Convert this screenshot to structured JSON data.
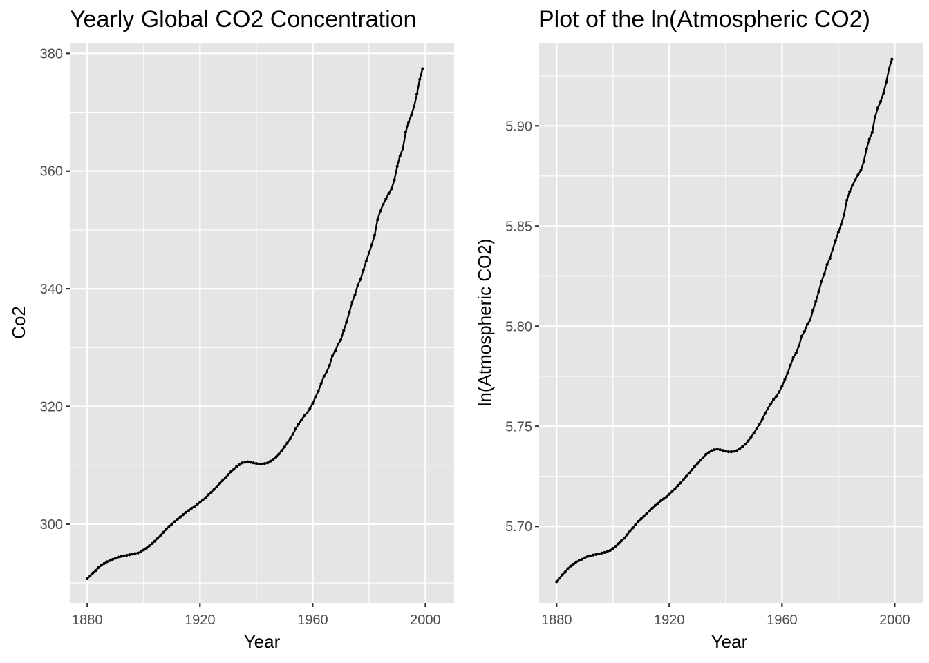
{
  "chart_data": [
    {
      "type": "line",
      "title": "Yearly Global CO2 Concentration",
      "xlabel": "Year",
      "ylabel": "Co2",
      "xlim": [
        1873.8,
        2010.2
      ],
      "ylim": [
        286.6,
        381.8
      ],
      "x_ticks": [
        1880,
        1920,
        1960,
        2000
      ],
      "x_tick_labels": [
        "1880",
        "1920",
        "1960",
        "2000"
      ],
      "x_minor_ticks": [
        1900,
        1940,
        1980
      ],
      "y_ticks": [
        300,
        320,
        340,
        360,
        380
      ],
      "y_tick_labels": [
        "300",
        "320",
        "340",
        "360",
        "380"
      ],
      "y_minor_ticks": [
        290,
        310,
        330,
        350,
        370
      ],
      "grid": true,
      "legend": "none",
      "series": [
        {
          "name": "Co2",
          "color": "#000000",
          "markers": true,
          "x_start": 1880,
          "x_step": 1,
          "values": [
            290.7,
            291.2,
            291.7,
            292.1,
            292.6,
            293.0,
            293.3,
            293.6,
            293.8,
            294.0,
            294.2,
            294.4,
            294.5,
            294.6,
            294.7,
            294.8,
            294.9,
            295.0,
            295.1,
            295.3,
            295.6,
            295.9,
            296.3,
            296.7,
            297.1,
            297.6,
            298.1,
            298.6,
            299.1,
            299.6,
            300.0,
            300.4,
            300.8,
            301.2,
            301.6,
            302.0,
            302.3,
            302.7,
            303.0,
            303.3,
            303.7,
            304.1,
            304.5,
            305.0,
            305.4,
            305.9,
            306.4,
            306.9,
            307.4,
            307.9,
            308.4,
            308.9,
            309.3,
            309.8,
            310.1,
            310.4,
            310.5,
            310.6,
            310.5,
            310.4,
            310.3,
            310.2,
            310.2,
            310.3,
            310.4,
            310.7,
            311.0,
            311.4,
            311.9,
            312.5,
            313.1,
            313.8,
            314.5,
            315.3,
            316.2,
            317.0,
            317.7,
            318.4,
            318.9,
            319.6,
            320.5,
            321.6,
            322.6,
            323.9,
            325.1,
            325.9,
            327.0,
            328.6,
            329.4,
            330.6,
            331.3,
            332.9,
            334.3,
            336.0,
            337.7,
            339.0,
            340.6,
            341.6,
            343.2,
            344.7,
            346.1,
            347.5,
            349.1,
            351.7,
            353.2,
            354.3,
            355.3,
            356.2,
            357.0,
            358.5,
            360.8,
            362.6,
            363.8,
            366.6,
            368.3,
            369.5,
            371.0,
            373.1,
            375.6,
            377.4
          ]
        }
      ]
    },
    {
      "type": "line",
      "title": "Plot of the ln(Atmospheric CO2)",
      "xlabel": "Year",
      "ylabel": "ln(Atmospheric CO2)",
      "xlim": [
        1873.8,
        2010.2
      ],
      "ylim": [
        5.6618,
        5.9415
      ],
      "x_ticks": [
        1880,
        1920,
        1960,
        2000
      ],
      "x_tick_labels": [
        "1880",
        "1920",
        "1960",
        "2000"
      ],
      "x_minor_ticks": [
        1900,
        1940,
        1980
      ],
      "y_ticks": [
        5.7,
        5.75,
        5.8,
        5.85,
        5.9
      ],
      "y_tick_labels": [
        "5.70",
        "5.75",
        "5.80",
        "5.85",
        "5.90"
      ],
      "y_minor_ticks": [
        5.725,
        5.775,
        5.825,
        5.875,
        5.925
      ],
      "grid": true,
      "legend": "none",
      "series": [
        {
          "name": "ln(Atmospheric CO2)",
          "color": "#000000",
          "markers": true,
          "x_start": 1880,
          "x_step": 1,
          "derived_from": "natural log of left-panel Co2 values",
          "values": [
            5.6724,
            5.6741,
            5.6758,
            5.6772,
            5.6789,
            5.6802,
            5.6812,
            5.6823,
            5.683,
            5.6836,
            5.6843,
            5.685,
            5.6853,
            5.6857,
            5.686,
            5.6863,
            5.6867,
            5.687,
            5.6874,
            5.688,
            5.689,
            5.6901,
            5.6914,
            5.6928,
            5.6941,
            5.6958,
            5.6975,
            5.6992,
            5.7008,
            5.7025,
            5.7038,
            5.7052,
            5.7065,
            5.7078,
            5.7092,
            5.7105,
            5.7115,
            5.7128,
            5.7138,
            5.7148,
            5.7161,
            5.7174,
            5.7188,
            5.7204,
            5.7217,
            5.7234,
            5.725,
            5.7266,
            5.7283,
            5.7299,
            5.7315,
            5.7331,
            5.7344,
            5.736,
            5.737,
            5.7379,
            5.7383,
            5.7386,
            5.7383,
            5.7379,
            5.7376,
            5.7373,
            5.7373,
            5.7376,
            5.7379,
            5.7389,
            5.7399,
            5.7411,
            5.7427,
            5.7446,
            5.7466,
            5.7488,
            5.751,
            5.7536,
            5.7564,
            5.759,
            5.7612,
            5.7634,
            5.765,
            5.7672,
            5.77,
            5.7734,
            5.7765,
            5.7806,
            5.7843,
            5.7867,
            5.7901,
            5.795,
            5.7974,
            5.801,
            5.8031,
            5.808,
            5.8122,
            5.8172,
            5.8223,
            5.8261,
            5.8308,
            5.8338,
            5.8384,
            5.8428,
            5.8469,
            5.8509,
            5.8555,
            5.8629,
            5.8672,
            5.8703,
            5.8731,
            5.8756,
            5.8779,
            5.8821,
            5.8885,
            5.8934,
            5.8967,
            5.9044,
            5.909,
            5.9122,
            5.9163,
            5.9219,
            5.9286,
            5.9333
          ]
        }
      ]
    }
  ]
}
